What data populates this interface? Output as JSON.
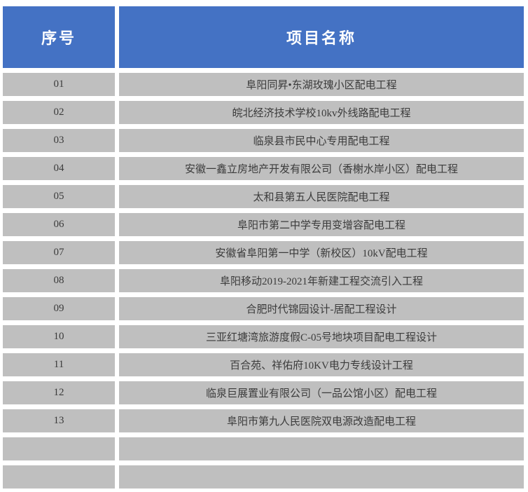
{
  "colors": {
    "header_bg": "#4472C4",
    "header_text": "#FFFFFF",
    "row_bg": "#BFBFBF",
    "row_text": "#3B3B3B",
    "page_bg": "#FFFFFF"
  },
  "table": {
    "columns": [
      {
        "key": "index",
        "label": "序号"
      },
      {
        "key": "name",
        "label": "项目名称"
      }
    ],
    "rows": [
      {
        "index": "01",
        "name": "阜阳同昇•东湖玫瑰小区配电工程"
      },
      {
        "index": "02",
        "name": "皖北经济技术学校10kv外线路配电工程"
      },
      {
        "index": "03",
        "name": "临泉县市民中心专用配电工程"
      },
      {
        "index": "04",
        "name": "安徽一鑫立房地产开发有限公司（香榭水岸小区）配电工程"
      },
      {
        "index": "05",
        "name": "太和县第五人民医院配电工程"
      },
      {
        "index": "06",
        "name": "阜阳市第二中学专用变增容配电工程"
      },
      {
        "index": "07",
        "name": "安徽省阜阳第一中学（新校区）10kV配电工程"
      },
      {
        "index": "08",
        "name": "阜阳移动2019-2021年新建工程交流引入工程"
      },
      {
        "index": "09",
        "name": "合肥时代锦园设计-居配工程设计"
      },
      {
        "index": "10",
        "name": "三亚红塘湾旅游度假C-05号地块项目配电工程设计"
      },
      {
        "index": "11",
        "name": "百合苑、祥佑府10KV电力专线设计工程"
      },
      {
        "index": "12",
        "name": "临泉巨展置业有限公司（一品公馆小区）配电工程"
      },
      {
        "index": "13",
        "name": "阜阳市第九人民医院双电源改造配电工程"
      },
      {
        "index": "",
        "name": ""
      },
      {
        "index": "",
        "name": ""
      }
    ]
  }
}
